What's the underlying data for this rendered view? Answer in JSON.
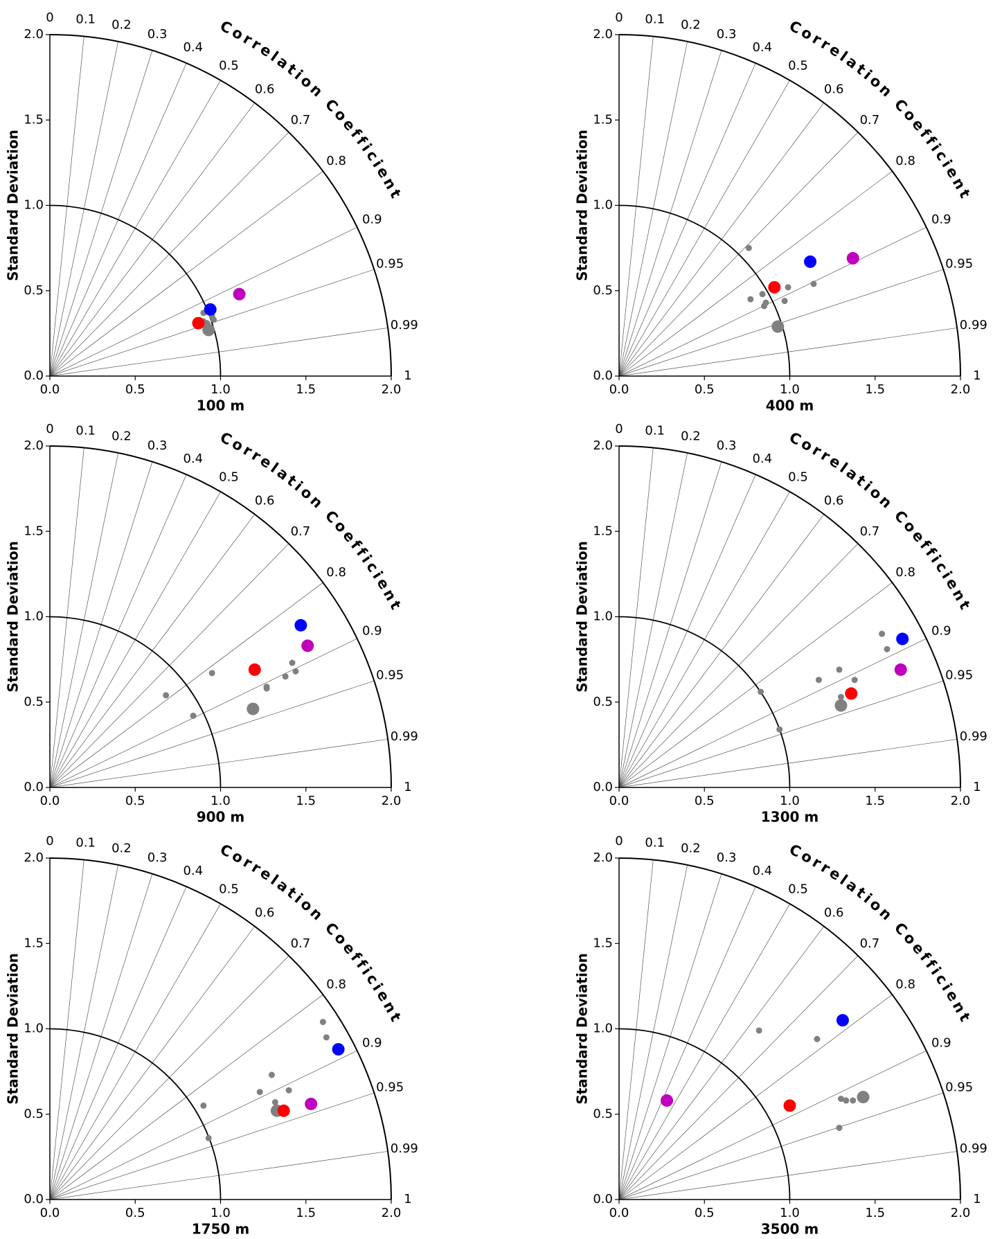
{
  "chart_data": [
    {
      "type": "taylor",
      "xlabel": "100 m",
      "ylabel": "Standard Deviation",
      "angle_label": "Correlation Coefficient",
      "xlim": [
        0,
        2
      ],
      "ylim": [
        0,
        2
      ],
      "xticks": [
        {
          "value": 0,
          "label": "0.0"
        },
        0.5,
        {
          "value": 1,
          "label": "1.0"
        },
        1.5,
        {
          "value": 2,
          "label": "2.0"
        }
      ],
      "yticks": [
        {
          "value": 0,
          "label": "0.0"
        },
        0.5,
        {
          "value": 1,
          "label": "1.0"
        },
        1.5,
        {
          "value": 2,
          "label": "2.0"
        }
      ],
      "correlation_ticks": [
        0,
        0.1,
        0.2,
        0.3,
        0.4,
        0.5,
        0.6,
        0.7,
        0.8,
        0.9,
        0.95,
        0.99,
        1
      ],
      "reference_std": 1,
      "series": [
        {
          "color": "#808080",
          "marker": "small",
          "x": [
            0.9,
            0.9,
            0.95,
            0.96,
            0.92
          ],
          "y": [
            0.37,
            0.32,
            0.35,
            0.33,
            0.31
          ]
        },
        {
          "color": "#808080",
          "marker": "large",
          "x": [
            0.93
          ],
          "y": [
            0.27
          ]
        },
        {
          "color": "#ff0000",
          "marker": "large",
          "x": [
            0.87
          ],
          "y": [
            0.31
          ]
        },
        {
          "color": "#0000ff",
          "marker": "large",
          "x": [
            0.94
          ],
          "y": [
            0.39
          ]
        },
        {
          "color": "#bf00bf",
          "marker": "large",
          "x": [
            1.11
          ],
          "y": [
            0.48
          ]
        }
      ]
    },
    {
      "type": "taylor",
      "xlabel": "400 m",
      "ylabel": "Standard Deviation",
      "angle_label": "Correlation Coefficient",
      "xlim": [
        0,
        2
      ],
      "ylim": [
        0,
        2
      ],
      "xticks": [
        {
          "value": 0,
          "label": "0.0"
        },
        0.5,
        {
          "value": 1,
          "label": "1.0"
        },
        1.5,
        {
          "value": 2,
          "label": "2.0"
        }
      ],
      "yticks": [
        {
          "value": 0,
          "label": "0.0"
        },
        0.5,
        {
          "value": 1,
          "label": "1.0"
        },
        1.5,
        {
          "value": 2,
          "label": "2.0"
        }
      ],
      "correlation_ticks": [
        0,
        0.1,
        0.2,
        0.3,
        0.4,
        0.5,
        0.6,
        0.7,
        0.8,
        0.9,
        0.95,
        0.99,
        1
      ],
      "reference_std": 1,
      "series": [
        {
          "color": "#808080",
          "marker": "small",
          "x": [
            0.76,
            0.77,
            0.84,
            0.86,
            0.85,
            0.99,
            0.97,
            1.14
          ],
          "y": [
            0.75,
            0.45,
            0.48,
            0.43,
            0.41,
            0.52,
            0.44,
            0.54
          ]
        },
        {
          "color": "#808080",
          "marker": "large",
          "x": [
            0.93
          ],
          "y": [
            0.29
          ]
        },
        {
          "color": "#ff0000",
          "marker": "large",
          "x": [
            0.91
          ],
          "y": [
            0.52
          ]
        },
        {
          "color": "#0000ff",
          "marker": "large",
          "x": [
            1.12
          ],
          "y": [
            0.67
          ]
        },
        {
          "color": "#bf00bf",
          "marker": "large",
          "x": [
            1.37
          ],
          "y": [
            0.69
          ]
        }
      ]
    },
    {
      "type": "taylor",
      "xlabel": "900 m",
      "ylabel": "Standard Deviation",
      "angle_label": "Correlation Coefficient",
      "xlim": [
        0,
        2
      ],
      "ylim": [
        0,
        2
      ],
      "xticks": [
        {
          "value": 0,
          "label": "0.0"
        },
        0.5,
        {
          "value": 1,
          "label": "1.0"
        },
        1.5,
        {
          "value": 2,
          "label": "2.0"
        }
      ],
      "yticks": [
        {
          "value": 0,
          "label": "0.0"
        },
        0.5,
        {
          "value": 1,
          "label": "1.0"
        },
        1.5,
        {
          "value": 2,
          "label": "2.0"
        }
      ],
      "correlation_ticks": [
        0,
        0.1,
        0.2,
        0.3,
        0.4,
        0.5,
        0.6,
        0.7,
        0.8,
        0.9,
        0.95,
        0.99,
        1
      ],
      "reference_std": 1,
      "series": [
        {
          "color": "#808080",
          "marker": "small",
          "x": [
            0.68,
            0.84,
            0.95,
            1.27,
            1.27,
            1.38,
            1.42,
            1.44
          ],
          "y": [
            0.54,
            0.42,
            0.67,
            0.59,
            0.58,
            0.65,
            0.73,
            0.68
          ]
        },
        {
          "color": "#808080",
          "marker": "large",
          "x": [
            1.19
          ],
          "y": [
            0.46
          ]
        },
        {
          "color": "#ff0000",
          "marker": "large",
          "x": [
            1.2
          ],
          "y": [
            0.69
          ]
        },
        {
          "color": "#0000ff",
          "marker": "large",
          "x": [
            1.47
          ],
          "y": [
            0.95
          ]
        },
        {
          "color": "#bf00bf",
          "marker": "large",
          "x": [
            1.51
          ],
          "y": [
            0.83
          ]
        }
      ]
    },
    {
      "type": "taylor",
      "xlabel": "1300 m",
      "ylabel": "Standard Deviation",
      "angle_label": "Correlation Coefficient",
      "xlim": [
        0,
        2
      ],
      "ylim": [
        0,
        2
      ],
      "xticks": [
        {
          "value": 0,
          "label": "0.0"
        },
        0.5,
        {
          "value": 1,
          "label": "1.0"
        },
        1.5,
        {
          "value": 2,
          "label": "2.0"
        }
      ],
      "yticks": [
        {
          "value": 0,
          "label": "0.0"
        },
        0.5,
        {
          "value": 1,
          "label": "1.0"
        },
        1.5,
        {
          "value": 2,
          "label": "2.0"
        }
      ],
      "correlation_ticks": [
        0,
        0.1,
        0.2,
        0.3,
        0.4,
        0.5,
        0.6,
        0.7,
        0.8,
        0.9,
        0.95,
        0.99,
        1
      ],
      "reference_std": 1,
      "series": [
        {
          "color": "#808080",
          "marker": "small",
          "x": [
            0.83,
            0.94,
            1.17,
            1.29,
            1.3,
            1.38,
            1.54,
            1.57
          ],
          "y": [
            0.56,
            0.34,
            0.63,
            0.69,
            0.53,
            0.63,
            0.9,
            0.81
          ]
        },
        {
          "color": "#808080",
          "marker": "large",
          "x": [
            1.3
          ],
          "y": [
            0.48
          ]
        },
        {
          "color": "#ff0000",
          "marker": "large",
          "x": [
            1.36
          ],
          "y": [
            0.55
          ]
        },
        {
          "color": "#0000ff",
          "marker": "large",
          "x": [
            1.66
          ],
          "y": [
            0.87
          ]
        },
        {
          "color": "#bf00bf",
          "marker": "large",
          "x": [
            1.65
          ],
          "y": [
            0.69
          ]
        }
      ]
    },
    {
      "type": "taylor",
      "xlabel": "1750 m",
      "ylabel": "Standard Deviation",
      "angle_label": "Correlation Coefficient",
      "xlim": [
        0,
        2
      ],
      "ylim": [
        0,
        2
      ],
      "xticks": [
        {
          "value": 0,
          "label": "0.0"
        },
        0.5,
        {
          "value": 1,
          "label": "1.0"
        },
        1.5,
        {
          "value": 2,
          "label": "2.0"
        }
      ],
      "yticks": [
        {
          "value": 0,
          "label": "0.0"
        },
        0.5,
        {
          "value": 1,
          "label": "1.0"
        },
        1.5,
        {
          "value": 2,
          "label": "2.0"
        }
      ],
      "correlation_ticks": [
        0,
        0.1,
        0.2,
        0.3,
        0.4,
        0.5,
        0.6,
        0.7,
        0.8,
        0.9,
        0.95,
        0.99,
        1
      ],
      "reference_std": 1,
      "series": [
        {
          "color": "#808080",
          "marker": "small",
          "x": [
            0.9,
            0.93,
            1.23,
            1.3,
            1.32,
            1.4,
            1.6,
            1.62
          ],
          "y": [
            0.55,
            0.36,
            0.63,
            0.73,
            0.57,
            0.64,
            1.04,
            0.95
          ]
        },
        {
          "color": "#808080",
          "marker": "large",
          "x": [
            1.33
          ],
          "y": [
            0.52
          ]
        },
        {
          "color": "#ff0000",
          "marker": "large",
          "x": [
            1.37
          ],
          "y": [
            0.52
          ]
        },
        {
          "color": "#0000ff",
          "marker": "large",
          "x": [
            1.69
          ],
          "y": [
            0.88
          ]
        },
        {
          "color": "#bf00bf",
          "marker": "large",
          "x": [
            1.53
          ],
          "y": [
            0.56
          ]
        }
      ]
    },
    {
      "type": "taylor",
      "xlabel": "3500 m",
      "ylabel": "Standard Deviation",
      "angle_label": "Correlation Coefficient",
      "xlim": [
        0,
        2
      ],
      "ylim": [
        0,
        2
      ],
      "xticks": [
        {
          "value": 0,
          "label": "0.0"
        },
        0.5,
        {
          "value": 1,
          "label": "1.0"
        },
        1.5,
        {
          "value": 2,
          "label": "2.0"
        }
      ],
      "yticks": [
        {
          "value": 0,
          "label": "0.0"
        },
        0.5,
        {
          "value": 1,
          "label": "1.0"
        },
        1.5,
        {
          "value": 2,
          "label": "2.0"
        }
      ],
      "correlation_ticks": [
        0,
        0.1,
        0.2,
        0.3,
        0.4,
        0.5,
        0.6,
        0.7,
        0.8,
        0.9,
        0.95,
        0.99,
        1
      ],
      "reference_std": 1,
      "series": [
        {
          "color": "#808080",
          "marker": "small",
          "x": [
            0.82,
            1.16,
            1.3,
            1.33,
            1.37,
            1.29
          ],
          "y": [
            0.99,
            0.94,
            0.59,
            0.58,
            0.58,
            0.42
          ]
        },
        {
          "color": "#808080",
          "marker": "large",
          "x": [
            1.43
          ],
          "y": [
            0.6
          ]
        },
        {
          "color": "#ff0000",
          "marker": "large",
          "x": [
            1.0
          ],
          "y": [
            0.55
          ]
        },
        {
          "color": "#0000ff",
          "marker": "large",
          "x": [
            1.31
          ],
          "y": [
            1.05
          ]
        },
        {
          "color": "#bf00bf",
          "marker": "large",
          "x": [
            0.28
          ],
          "y": [
            0.58
          ]
        }
      ]
    }
  ]
}
